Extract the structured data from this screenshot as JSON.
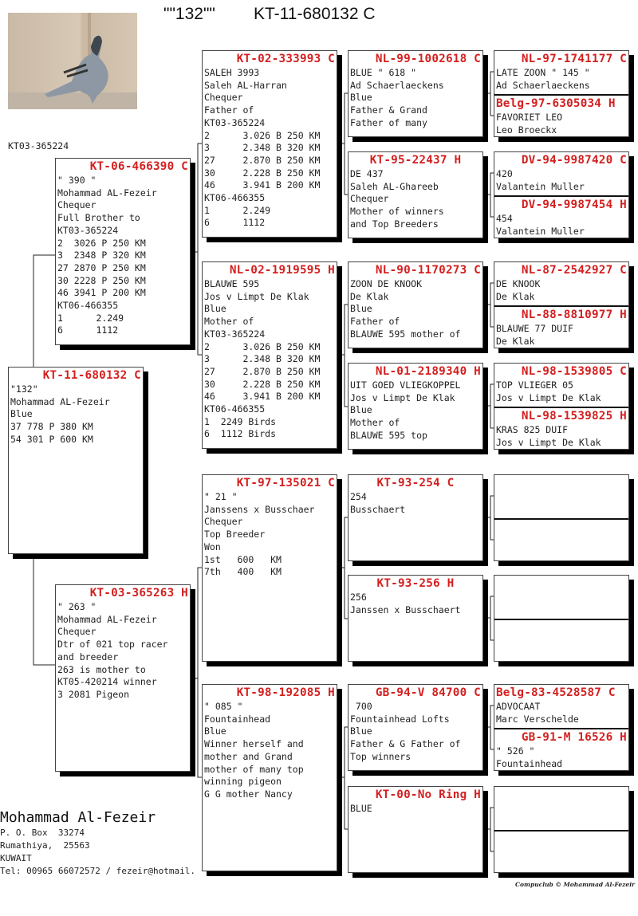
{
  "header": {
    "name": "\"\"132\"\"",
    "ring": "KT-11-680132 C"
  },
  "photo": {
    "alt": "pigeon photo"
  },
  "ref_number": "KT03-365224",
  "pedigree": {
    "subject": {
      "ring": "KT-11-680132 C",
      "lines": [
        "\"132\"",
        "Mohammad AL-Fezeir",
        "Blue",
        "37 778 P 380 KM",
        "54 301 P 600 KM"
      ]
    },
    "sire": {
      "ring": "KT-06-466390 C",
      "lines": [
        "\" 390 \"",
        "Mohammad AL-Fezeir",
        "Chequer",
        "Full Brother to",
        "KT03-365224",
        "2  3026 P 250 KM",
        "3  2348 P 320 KM",
        "27 2870 P 250 KM",
        "30 2228 P 250 KM",
        "46 3941 P 200 KM",
        "KT06-466355",
        "1      2.249",
        "6      1112"
      ]
    },
    "dam": {
      "ring": "KT-03-365263 H",
      "lines": [
        "\" 263 \"",
        "Mohammad AL-Fezeir",
        "Chequer",
        "Dtr of 021 top racer",
        "and breeder",
        "263 is mother to",
        "KT05-420214 winner",
        "3 2081 Pigeon"
      ]
    },
    "gen3": [
      {
        "ring": "KT-02-333993 C",
        "lines": [
          "SALEH 3993",
          "Saleh AL-Harran",
          "Chequer",
          "Father of",
          "KT03-365224",
          "2      3.026 B 250 KM",
          "3      2.348 B 320 KM",
          "27     2.870 B 250 KM",
          "30     2.228 B 250 KM",
          "46     3.941 B 200 KM",
          "KT06-466355",
          "1      2.249",
          "6      1112"
        ]
      },
      {
        "ring": "NL-02-1919595 H",
        "lines": [
          "BLAUWE 595",
          "Jos v Limpt De Klak",
          "Blue",
          "Mother of",
          "KT03-365224",
          "2      3.026 B 250 KM",
          "3      2.348 B 320 KM",
          "27     2.870 B 250 KM",
          "30     2.228 B 250 KM",
          "46     3.941 B 200 KM",
          "KT06-466355",
          "1  2249 Birds",
          "6  1112 Birds"
        ]
      },
      {
        "ring": "KT-97-135021 C",
        "lines": [
          "\" 21 \"",
          "Janssens x Busschaer",
          "Chequer",
          "Top Breeder",
          "Won",
          "1st   600   KM",
          "7th   400   KM"
        ]
      },
      {
        "ring": "KT-98-192085 H",
        "lines": [
          "\" 085 \"",
          "Fountainhead",
          "Blue",
          "Winner herself and",
          "mother and Grand",
          "mother of many top",
          "winning pigeon",
          "G G mother Nancy"
        ]
      }
    ],
    "gen4": [
      {
        "ring": "NL-99-1002618 C",
        "lines": [
          "BLUE \" 618 \"",
          "Ad Schaerlaeckens",
          "Blue",
          "Father & Grand",
          "Father of many"
        ]
      },
      {
        "ring": "KT-95-22437 H",
        "lines": [
          "DE 437",
          "Saleh AL-Ghareeb",
          "Chequer",
          "Mother of winners",
          "and Top Breeders"
        ]
      },
      {
        "ring": "NL-90-1170273 C",
        "lines": [
          "ZOON DE KNOOK",
          "De Klak",
          "Blue",
          "Father of",
          "BLAUWE 595 mother of"
        ]
      },
      {
        "ring": "NL-01-2189340 H",
        "lines": [
          "UIT GOED VLIEGKOPPEL",
          "Jos v Limpt De Klak",
          "Blue",
          "Mother of",
          "BLAUWE 595 top"
        ]
      },
      {
        "ring": "KT-93-254 C",
        "lines": [
          "254",
          "Busschaert"
        ]
      },
      {
        "ring": "KT-93-256 H",
        "lines": [
          "256",
          "Janssen x Busschaert"
        ]
      },
      {
        "ring": "GB-94-V 84700 C",
        "lines": [
          " 700",
          "Fountainhead Lofts",
          "Blue",
          "Father & G Father of",
          "Top winners"
        ]
      },
      {
        "ring": "KT-00-No Ring H",
        "lines": [
          "BLUE"
        ]
      }
    ],
    "gen5": [
      {
        "ring": "NL-97-1741177 C",
        "lines": [
          "LATE ZOON \" 145 \"",
          "Ad Schaerlaeckens"
        ]
      },
      {
        "ring": "Belg-97-6305034 H",
        "lines": [
          "FAVORIET LEO",
          "Leo Broeckx"
        ]
      },
      {
        "ring": "DV-94-9987420 C",
        "lines": [
          "420",
          "Valantein Muller"
        ]
      },
      {
        "ring": "DV-94-9987454 H",
        "lines": [
          "454",
          "Valantein Muller"
        ]
      },
      {
        "ring": "NL-87-2542927 C",
        "lines": [
          "DE KNOOK",
          "De Klak"
        ]
      },
      {
        "ring": "NL-88-8810977 H",
        "lines": [
          "BLAUWE 77 DUIF",
          "De Klak"
        ]
      },
      {
        "ring": "NL-98-1539805 C",
        "lines": [
          "TOP VLIEGER 05",
          "Jos v Limpt De Klak"
        ]
      },
      {
        "ring": "NL-98-1539825 H",
        "lines": [
          "KRAS 825 DUIF",
          "Jos v Limpt De Klak"
        ]
      },
      {
        "ring": "",
        "lines": []
      },
      {
        "ring": "",
        "lines": []
      },
      {
        "ring": "",
        "lines": []
      },
      {
        "ring": "",
        "lines": []
      },
      {
        "ring": "Belg-83-4528587 C",
        "lines": [
          "ADVOCAAT",
          "Marc Verschelde"
        ]
      },
      {
        "ring": "GB-91-M 16526 H",
        "lines": [
          "\" 526 \"",
          "Fountainhead"
        ]
      },
      {
        "ring": "",
        "lines": []
      },
      {
        "ring": "",
        "lines": []
      }
    ]
  },
  "owner": {
    "name": "Mohammad Al-Fezeir",
    "address": [
      "P. O. Box  33274",
      "Rumathiya,  25563",
      "KUWAIT",
      "Tel: 00965 66072572 / fezeir@hotmail."
    ]
  },
  "credit": "Compuclub © Mohammad Al-Fezeir",
  "colors": {
    "ring_text": "#d42020",
    "shadow": "#000000"
  }
}
